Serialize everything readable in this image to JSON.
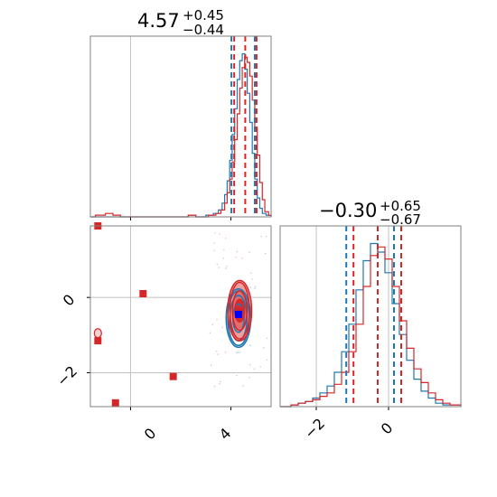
{
  "colors": {
    "red": "#d62728",
    "blue": "#1f77b4",
    "grid": "#c0c0c0",
    "frame": "#808080"
  },
  "chart_data": [
    {
      "type": "histogram",
      "panel": "top-left",
      "title_value": "4.57",
      "title_sup": "+0.45",
      "title_sub": "−0.44",
      "xlim": [
        -1.6,
        5.6
      ],
      "x_truth": 0,
      "red_quantiles": [
        4.13,
        4.57,
        5.02
      ],
      "blue_quantiles": [
        4.02,
        4.95
      ],
      "red_hist": [
        [
          -1.6,
          0
        ],
        [
          -1.4,
          0.01
        ],
        [
          -1.0,
          0.02
        ],
        [
          -0.7,
          0.01
        ],
        [
          -0.4,
          0
        ],
        [
          2.0,
          0
        ],
        [
          2.3,
          0.01
        ],
        [
          2.6,
          0
        ],
        [
          3.1,
          0.01
        ],
        [
          3.4,
          0.02
        ],
        [
          3.6,
          0.04
        ],
        [
          3.75,
          0.08
        ],
        [
          3.85,
          0.14
        ],
        [
          3.95,
          0.22
        ],
        [
          4.05,
          0.32
        ],
        [
          4.15,
          0.45
        ],
        [
          4.25,
          0.6
        ],
        [
          4.35,
          0.75
        ],
        [
          4.45,
          0.87
        ],
        [
          4.55,
          0.93
        ],
        [
          4.65,
          0.9
        ],
        [
          4.75,
          0.82
        ],
        [
          4.85,
          0.68
        ],
        [
          4.95,
          0.52
        ],
        [
          5.05,
          0.36
        ],
        [
          5.15,
          0.2
        ],
        [
          5.25,
          0.1
        ],
        [
          5.35,
          0.03
        ],
        [
          5.5,
          0.01
        ],
        [
          5.6,
          0
        ]
      ],
      "blue_hist": [
        [
          -1.6,
          0
        ],
        [
          2.0,
          0
        ],
        [
          2.3,
          0.01
        ],
        [
          2.6,
          0
        ],
        [
          3.0,
          0.01
        ],
        [
          3.3,
          0.02
        ],
        [
          3.5,
          0.04
        ],
        [
          3.65,
          0.08
        ],
        [
          3.75,
          0.13
        ],
        [
          3.85,
          0.21
        ],
        [
          3.95,
          0.33
        ],
        [
          4.05,
          0.48
        ],
        [
          4.15,
          0.63
        ],
        [
          4.25,
          0.8
        ],
        [
          4.35,
          0.91
        ],
        [
          4.45,
          0.95
        ],
        [
          4.55,
          0.86
        ],
        [
          4.65,
          0.72
        ],
        [
          4.75,
          0.55
        ],
        [
          4.85,
          0.37
        ],
        [
          4.95,
          0.22
        ],
        [
          5.05,
          0.11
        ],
        [
          5.15,
          0.05
        ],
        [
          5.25,
          0.02
        ],
        [
          5.4,
          0.01
        ],
        [
          5.6,
          0
        ]
      ]
    },
    {
      "type": "contour",
      "panel": "bottom-left",
      "xlim": [
        -1.6,
        5.6
      ],
      "ylim": [
        -2.9,
        1.9
      ],
      "x_ticks": [
        0,
        4
      ],
      "x_tick_labels": [
        "0",
        "4"
      ],
      "y_ticks": [
        0,
        -2
      ],
      "y_tick_labels": [
        "0",
        "−2"
      ],
      "truth_x": 0,
      "truth_y": -2,
      "red_center": [
        4.35,
        -0.35
      ],
      "red_radii": [
        [
          0.38,
          0.6
        ],
        [
          0.58,
          1.05
        ],
        [
          0.78,
          1.5
        ],
        [
          0.95,
          1.6
        ]
      ],
      "blue_center": [
        4.3,
        -0.55
      ],
      "blue_radii": [
        [
          0.45,
          0.75
        ],
        [
          0.68,
          1.2
        ],
        [
          0.85,
          1.45
        ],
        [
          0.98,
          1.55
        ]
      ],
      "red_square_points": [
        [
          -1.3,
          1.9
        ],
        [
          -1.3,
          -1.15
        ],
        [
          -0.6,
          -2.8
        ],
        [
          0.5,
          0.1
        ],
        [
          1.7,
          -2.1
        ],
        [
          4.35,
          -0.35
        ]
      ],
      "blue_square_points": [
        [
          4.3,
          -0.45
        ]
      ],
      "red_small_contour": [
        -1.3,
        -0.95
      ]
    },
    {
      "type": "histogram",
      "panel": "bottom-right",
      "title_value": "−0.30",
      "title_sup": "+0.65",
      "title_sub": "−0.67",
      "xlim": [
        -3.0,
        2.0
      ],
      "x_ticks": [
        -2,
        0
      ],
      "x_tick_labels": [
        "−2",
        "0"
      ],
      "x_truth": -2,
      "x_truth2": 0,
      "red_quantiles": [
        -0.97,
        -0.3,
        0.35
      ],
      "blue_quantiles": [
        -1.17,
        0.15
      ],
      "red_hist": [
        [
          -3.0,
          0
        ],
        [
          -2.7,
          0.01
        ],
        [
          -2.5,
          0.02
        ],
        [
          -2.3,
          0.03
        ],
        [
          -2.1,
          0.04
        ],
        [
          -1.9,
          0.06
        ],
        [
          -1.7,
          0.08
        ],
        [
          -1.5,
          0.13
        ],
        [
          -1.3,
          0.2
        ],
        [
          -1.1,
          0.32
        ],
        [
          -0.9,
          0.48
        ],
        [
          -0.7,
          0.7
        ],
        [
          -0.5,
          0.88
        ],
        [
          -0.3,
          0.93
        ],
        [
          -0.1,
          0.86
        ],
        [
          0.1,
          0.7
        ],
        [
          0.3,
          0.5
        ],
        [
          0.5,
          0.34
        ],
        [
          0.7,
          0.22
        ],
        [
          0.9,
          0.14
        ],
        [
          1.1,
          0.08
        ],
        [
          1.3,
          0.04
        ],
        [
          1.5,
          0.02
        ],
        [
          1.7,
          0.01
        ],
        [
          2.0,
          0
        ]
      ],
      "blue_hist": [
        [
          -3.0,
          0
        ],
        [
          -2.7,
          0.01
        ],
        [
          -2.5,
          0.02
        ],
        [
          -2.3,
          0.03
        ],
        [
          -2.1,
          0.05
        ],
        [
          -1.9,
          0.08
        ],
        [
          -1.7,
          0.12
        ],
        [
          -1.5,
          0.2
        ],
        [
          -1.3,
          0.32
        ],
        [
          -1.1,
          0.48
        ],
        [
          -0.9,
          0.68
        ],
        [
          -0.7,
          0.85
        ],
        [
          -0.5,
          0.95
        ],
        [
          -0.3,
          0.9
        ],
        [
          -0.1,
          0.78
        ],
        [
          0.1,
          0.6
        ],
        [
          0.3,
          0.42
        ],
        [
          0.5,
          0.27
        ],
        [
          0.7,
          0.16
        ],
        [
          0.9,
          0.09
        ],
        [
          1.1,
          0.05
        ],
        [
          1.3,
          0.02
        ],
        [
          1.5,
          0.01
        ],
        [
          2.0,
          0
        ]
      ]
    }
  ]
}
